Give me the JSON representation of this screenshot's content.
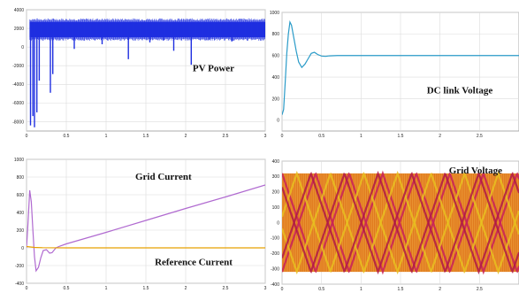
{
  "chart_data": [
    {
      "type": "line",
      "title": "",
      "xlabel": "",
      "ylabel": "",
      "xlim": [
        0,
        3
      ],
      "ylim": [
        -9000,
        4000
      ],
      "x_ticks": [
        0,
        0.5,
        1,
        1.5,
        2,
        2.5,
        3
      ],
      "x_tick_labels": [
        "0",
        "0.5",
        "1",
        "1.5",
        "2",
        "2.5",
        "3"
      ],
      "y_ticks": [
        4000,
        2000,
        0,
        -2000,
        -4000,
        -6000,
        -8000
      ],
      "y_tick_labels": [
        "4000",
        "2000",
        "0",
        "-2000",
        "-4000",
        "-6000",
        "-8000"
      ],
      "grid": true,
      "color": "#1f2fe0",
      "annotations": [
        {
          "text": "PV Power",
          "x": 2.35,
          "y": -2600
        }
      ],
      "series": [
        {
          "style": "band",
          "band_upper": 2700,
          "band_lower": 1050,
          "x_start": 0.04,
          "x_end": 3.0,
          "spikes": [
            {
              "x": 0.05,
              "y": -8400
            },
            {
              "x": 0.08,
              "y": -7400
            },
            {
              "x": 0.1,
              "y": -8600
            },
            {
              "x": 0.13,
              "y": -7000
            },
            {
              "x": 0.16,
              "y": -3600
            },
            {
              "x": 0.3,
              "y": -4900
            },
            {
              "x": 0.33,
              "y": -2900
            },
            {
              "x": 0.6,
              "y": -200
            },
            {
              "x": 0.95,
              "y": 300
            },
            {
              "x": 1.28,
              "y": -1300
            },
            {
              "x": 1.55,
              "y": 500
            },
            {
              "x": 1.72,
              "y": 700
            },
            {
              "x": 1.85,
              "y": -400
            },
            {
              "x": 2.07,
              "y": -1900
            },
            {
              "x": 2.3,
              "y": 800
            },
            {
              "x": 2.58,
              "y": 600
            }
          ]
        }
      ]
    },
    {
      "type": "line",
      "title": "",
      "xlabel": "",
      "ylabel": "",
      "xlim": [
        0,
        3
      ],
      "ylim": [
        -100,
        1000
      ],
      "x_ticks": [
        0,
        0.5,
        1,
        1.5,
        2,
        2.5
      ],
      "x_tick_labels": [
        "0",
        "0.5",
        "1",
        "1.5",
        "2",
        "2.5"
      ],
      "y_ticks": [
        1000,
        800,
        600,
        400,
        200,
        0
      ],
      "y_tick_labels": [
        "1000",
        "800",
        "600",
        "400",
        "200",
        "0"
      ],
      "grid": true,
      "color": "#2a9bc8",
      "annotations": [
        {
          "text": "DC link Voltage",
          "x": 2.25,
          "y": 250
        }
      ],
      "series": [
        {
          "style": "line",
          "points": [
            [
              0,
              50
            ],
            [
              0.02,
              100
            ],
            [
              0.04,
              350
            ],
            [
              0.06,
              620
            ],
            [
              0.08,
              800
            ],
            [
              0.1,
              910
            ],
            [
              0.12,
              880
            ],
            [
              0.15,
              760
            ],
            [
              0.18,
              640
            ],
            [
              0.21,
              540
            ],
            [
              0.25,
              490
            ],
            [
              0.29,
              520
            ],
            [
              0.33,
              570
            ],
            [
              0.37,
              620
            ],
            [
              0.41,
              630
            ],
            [
              0.45,
              610
            ],
            [
              0.5,
              595
            ],
            [
              0.55,
              592
            ],
            [
              0.6,
              597
            ],
            [
              0.7,
              600
            ],
            [
              1.0,
              600
            ],
            [
              1.5,
              600
            ],
            [
              2.0,
              600
            ],
            [
              2.5,
              600
            ],
            [
              3.0,
              600
            ]
          ]
        }
      ]
    },
    {
      "type": "line",
      "title": "",
      "xlabel": "",
      "ylabel": "",
      "xlim": [
        0,
        3
      ],
      "ylim": [
        -400,
        1000
      ],
      "x_ticks": [
        0,
        0.5,
        1,
        1.5,
        2,
        2.5,
        3
      ],
      "x_tick_labels": [
        "0",
        "0.5",
        "1",
        "1.5",
        "2",
        "2.5",
        "3"
      ],
      "y_ticks": [
        1000,
        800,
        600,
        400,
        200,
        0,
        -200,
        -400
      ],
      "y_tick_labels": [
        "1000",
        "800",
        "600",
        "400",
        "200",
        "0",
        "-200",
        "-400"
      ],
      "grid": true,
      "annotations": [
        {
          "text": "Grid Current",
          "x": 1.72,
          "y": 770
        },
        {
          "text": "Reference Current",
          "x": 2.1,
          "y": -195
        }
      ],
      "series": [
        {
          "style": "line",
          "color": "#b06ad0",
          "points": [
            [
              0,
              0
            ],
            [
              0.02,
              300
            ],
            [
              0.04,
              650
            ],
            [
              0.06,
              520
            ],
            [
              0.08,
              200
            ],
            [
              0.1,
              -100
            ],
            [
              0.12,
              -260
            ],
            [
              0.15,
              -220
            ],
            [
              0.18,
              -110
            ],
            [
              0.21,
              -30
            ],
            [
              0.25,
              -20
            ],
            [
              0.29,
              -60
            ],
            [
              0.32,
              -55
            ],
            [
              0.37,
              0
            ],
            [
              0.42,
              20
            ],
            [
              0.5,
              45
            ],
            [
              1.0,
              175
            ],
            [
              1.5,
              310
            ],
            [
              2.0,
              445
            ],
            [
              2.5,
              575
            ],
            [
              3.0,
              710
            ]
          ]
        },
        {
          "style": "line",
          "color": "#e8a000",
          "points": [
            [
              0,
              15
            ],
            [
              0.1,
              5
            ],
            [
              0.2,
              2
            ],
            [
              0.5,
              0
            ],
            [
              3.0,
              0
            ]
          ]
        }
      ]
    },
    {
      "type": "line",
      "title": "",
      "xlabel": "",
      "ylabel": "",
      "xlim": [
        0,
        3
      ],
      "ylim": [
        -400,
        400
      ],
      "x_ticks": [
        0,
        0.5,
        1,
        1.5,
        2,
        2.5
      ],
      "x_tick_labels": [
        "0",
        "0.5",
        "1",
        "1.5",
        "2",
        "2.5"
      ],
      "y_ticks": [
        400,
        300,
        200,
        100,
        0,
        -100,
        -200,
        -300,
        -400
      ],
      "y_tick_labels": [
        "400",
        "300",
        "200",
        "100",
        "0",
        "-100",
        "-200",
        "-300",
        "-400"
      ],
      "grid": true,
      "annotations": [
        {
          "text": "Grid Voltage",
          "x": 2.45,
          "y": 320
        }
      ],
      "series": [
        {
          "style": "band",
          "fill": true,
          "color": "#e07a1e",
          "band_upper": 320,
          "band_lower": -320
        },
        {
          "style": "envelope",
          "color": "#c8205a",
          "amplitude": 320,
          "period": 0.85,
          "phase": 0.0
        },
        {
          "style": "envelope",
          "color": "#e8c020",
          "amplitude": 320,
          "period": 0.85,
          "phase": 0.28
        },
        {
          "style": "envelope",
          "color": "#b01848",
          "amplitude": 320,
          "period": 0.85,
          "phase": 0.57
        }
      ]
    }
  ]
}
